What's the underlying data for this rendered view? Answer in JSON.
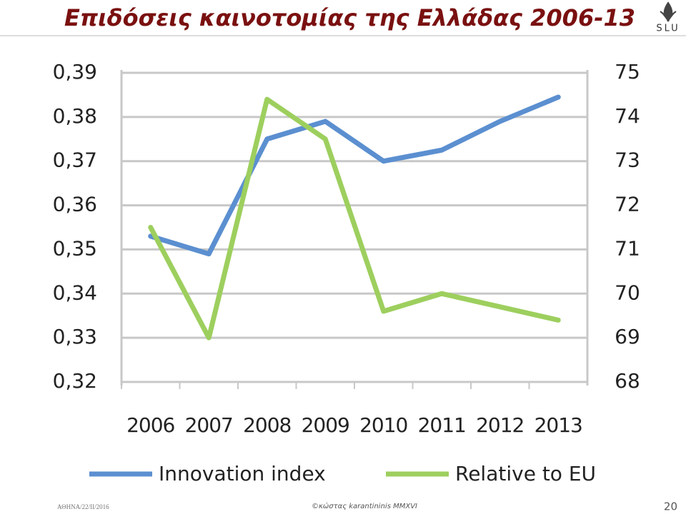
{
  "chart_data": {
    "type": "line",
    "title": "Επιδόσεις καινοτομίας της Ελλάδας 2006-13",
    "categories": [
      "2006",
      "2007",
      "2008",
      "2009",
      "2010",
      "2011",
      "2012",
      "2013"
    ],
    "series": [
      {
        "name": "Innovation index",
        "color": "#5b8fd0",
        "values": [
          0.353,
          0.349,
          0.375,
          0.379,
          0.37,
          0.3725,
          0.379,
          0.3845
        ]
      },
      {
        "name": "Relative to EU",
        "color": "#9dcf5e",
        "axis": "y2",
        "values": [
          71.5,
          69.0,
          74.4,
          73.5,
          69.6,
          70.0,
          69.7,
          69.4
        ]
      }
    ],
    "ylim": [
      0.32,
      0.39
    ],
    "yticks": [
      {
        "value": 0.32,
        "label": "0,32"
      },
      {
        "value": 0.33,
        "label": "0,33"
      },
      {
        "value": 0.34,
        "label": "0,34"
      },
      {
        "value": 0.35,
        "label": "0,35"
      },
      {
        "value": 0.36,
        "label": "0,36"
      },
      {
        "value": 0.37,
        "label": "0,37"
      },
      {
        "value": 0.38,
        "label": "0,38"
      },
      {
        "value": 0.39,
        "label": "0,39"
      }
    ],
    "y2lim": [
      68,
      75
    ],
    "y2ticks": [
      68,
      69,
      70,
      71,
      72,
      73,
      74,
      75
    ],
    "grid": true,
    "legend": "bottom"
  },
  "logo": "SLU",
  "footer": {
    "date": "ΑΘΗΝΑ/22/ΙΙ/2016",
    "copyright": "©κώστας karantininis MMXVI",
    "page": "20"
  }
}
